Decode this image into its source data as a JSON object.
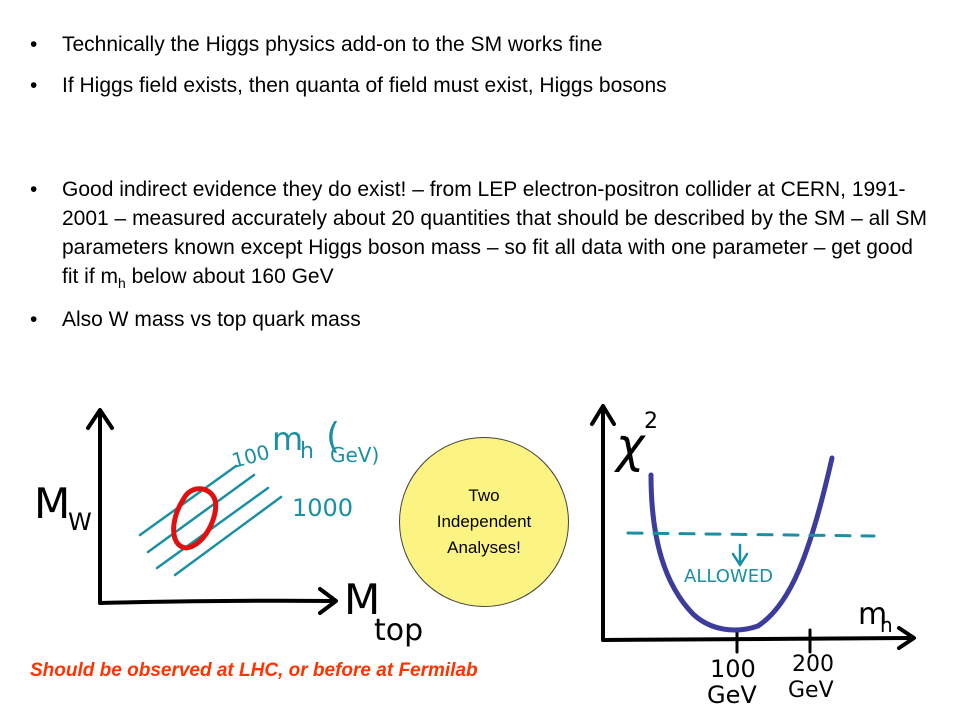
{
  "bullets": [
    {
      "marker": "•",
      "text": "Technically the Higgs physics add-on to the SM works fine"
    },
    {
      "marker": "•",
      "text": "If Higgs field exists, then quanta of field must exist, Higgs bosons"
    },
    {
      "marker": "•",
      "text": "Good indirect evidence they do exist! – from LEP electron-positron collider at CERN, 1991-2001 – measured accurately about 20 quantities that should be described by the SM – all SM parameters known except Higgs boson mass – so fit all data with one parameter – get good fit if m",
      "sub": "h",
      "tail": " below about 160 GeV"
    },
    {
      "marker": "•",
      "text": "Also W mass vs top quark mass"
    }
  ],
  "left_plot": {
    "y_label_main": "M",
    "y_label_sub": "W",
    "x_label_main": "M",
    "x_label_sub": "top",
    "legend_title_main": "m",
    "legend_title_sub": "h",
    "legend_paren": "(",
    "legend_unit": "GeV)",
    "label_low": "100",
    "label_high": "1000",
    "colors": {
      "axes": "#000000",
      "lines": "#1b8fa3",
      "ellipse": "#e01010"
    }
  },
  "callout": {
    "line1": "Two",
    "line2": "Independent",
    "line3": "Analyses!",
    "color": "#fbf382"
  },
  "right_plot": {
    "y_label_main": "χ",
    "y_label_sup": "2",
    "x_label_main": "m",
    "x_label_sub": "h",
    "allowed_label": "ALLOWED",
    "tick1_value": "100",
    "tick1_unit": "GeV",
    "tick2_value": "200",
    "tick2_unit": "GeV",
    "colors": {
      "curve": "#3c3c9c",
      "threshold": "#1b8fa3"
    }
  },
  "footer": {
    "text": "Should be observed at LHC, or before at Fermilab",
    "color": "#ff3300"
  }
}
